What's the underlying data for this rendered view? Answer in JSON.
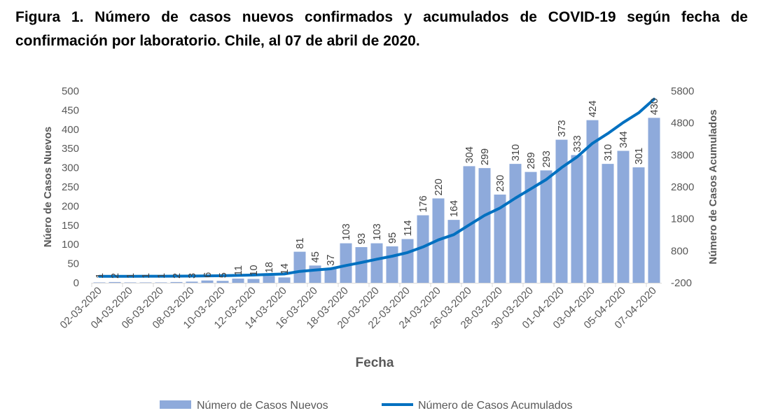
{
  "title_line1": "Figura 1. Número de casos nuevos confirmados y acumulados de COVID-19 según fecha de",
  "title_line2": "confirmación por laboratorio. Chile, al 07 de abril de 2020.",
  "chart_data": {
    "type": "bar",
    "title": "Figura 1. Número de casos nuevos confirmados y acumulados de COVID-19 según fecha de confirmación por laboratorio. Chile, al 07 de abril de 2020.",
    "xlabel": "Fecha",
    "ylabel": "Núero de Casos Nuevos",
    "y2label": "Número de Casos Acumulados",
    "ylim": [
      0,
      500
    ],
    "yticks": [
      0,
      50,
      100,
      150,
      200,
      250,
      300,
      350,
      400,
      450,
      500
    ],
    "y2lim": [
      -200,
      5800
    ],
    "y2ticks": [
      -200,
      800,
      1800,
      2800,
      3800,
      4800,
      5800
    ],
    "grid": false,
    "legend_placement": "bottom",
    "categories": [
      "02-03-2020",
      "03-03-2020",
      "04-03-2020",
      "05-03-2020",
      "06-03-2020",
      "07-03-2020",
      "08-03-2020",
      "09-03-2020",
      "10-03-2020",
      "11-03-2020",
      "12-03-2020",
      "13-03-2020",
      "14-03-2020",
      "15-03-2020",
      "16-03-2020",
      "17-03-2020",
      "18-03-2020",
      "19-03-2020",
      "20-03-2020",
      "21-03-2020",
      "22-03-2020",
      "23-03-2020",
      "24-03-2020",
      "25-03-2020",
      "26-03-2020",
      "27-03-2020",
      "28-03-2020",
      "29-03-2020",
      "30-03-2020",
      "31-03-2020",
      "01-04-2020",
      "02-04-2020",
      "03-04-2020",
      "04-04-2020",
      "05-04-2020",
      "06-04-2020",
      "07-04-2020"
    ],
    "tick_labels": [
      "02-03-2020",
      "04-03-2020",
      "06-03-2020",
      "08-03-2020",
      "10-03-2020",
      "12-03-2020",
      "14-03-2020",
      "16-03-2020",
      "18-03-2020",
      "20-03-2020",
      "22-03-2020",
      "24-03-2020",
      "26-03-2020",
      "28-03-2020",
      "30-03-2020",
      "01-04-2020",
      "03-04-2020",
      "05-04-2020",
      "07-04-2020"
    ],
    "series": [
      {
        "name": "Número de Casos Nuevos",
        "type": "bar",
        "axis": "left",
        "color": "#8eaadb",
        "values": [
          1,
          2,
          1,
          1,
          1,
          2,
          3,
          6,
          5,
          11,
          10,
          18,
          14,
          81,
          45,
          37,
          103,
          93,
          103,
          95,
          114,
          176,
          220,
          164,
          304,
          299,
          230,
          310,
          289,
          293,
          373,
          333,
          424,
          310,
          344,
          301,
          430
        ]
      },
      {
        "name": "Número de Casos Acumulados",
        "type": "line",
        "axis": "right",
        "color": "#0070c0",
        "values": [
          1,
          3,
          4,
          5,
          6,
          8,
          11,
          17,
          22,
          33,
          43,
          61,
          75,
          156,
          201,
          238,
          341,
          434,
          537,
          632,
          746,
          922,
          1142,
          1306,
          1610,
          1909,
          2139,
          2449,
          2738,
          3031,
          3404,
          3737,
          4161,
          4471,
          4815,
          5116,
          5546
        ]
      }
    ]
  }
}
